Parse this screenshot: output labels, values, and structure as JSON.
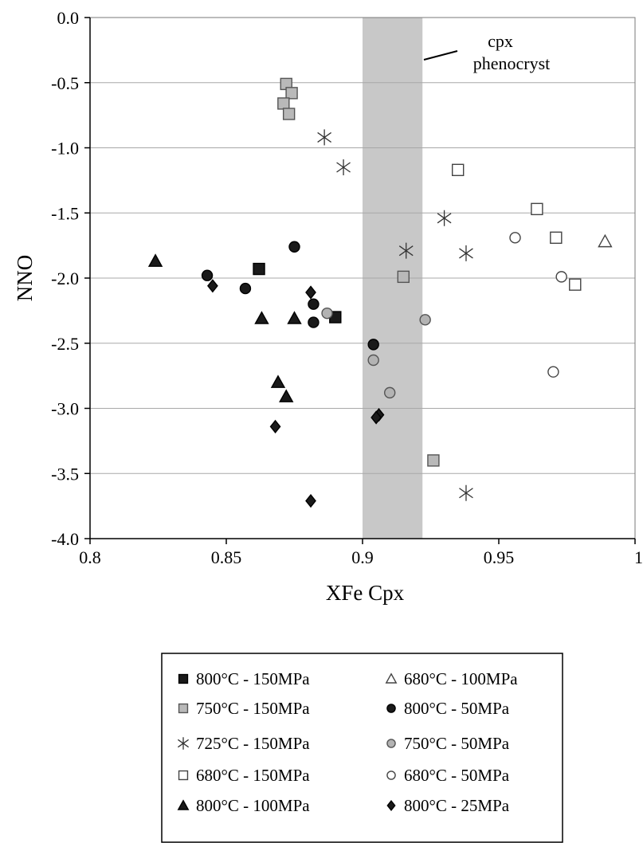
{
  "chart_data": {
    "type": "scatter",
    "xlabel": "XFe Cpx",
    "ylabel": "NNO",
    "xlim": [
      0.8,
      1.0
    ],
    "ylim": [
      -4.0,
      0.0
    ],
    "x_ticks": [
      0.8,
      0.85,
      0.9,
      0.95,
      1.0
    ],
    "x_tick_labels": [
      "0.8",
      "0.85",
      "0.9",
      "0.95",
      "1"
    ],
    "y_ticks": [
      0.0,
      -0.5,
      -1.0,
      -1.5,
      -2.0,
      -2.5,
      -3.0,
      -3.5,
      -4.0
    ],
    "y_tick_labels": [
      "0.0",
      "-0.5",
      "-1.0",
      "-1.5",
      "-2.0",
      "-2.5",
      "-3.0",
      "-3.5",
      "-4.0"
    ],
    "grid": "horizontal",
    "shaded_band": {
      "x": [
        0.9,
        0.922
      ],
      "color": "#c8c8c8"
    },
    "annotation": {
      "lines": [
        "cpx",
        "phenocryst"
      ]
    },
    "legend_position": "bottom",
    "series": [
      {
        "name": "800°C - 150MPa",
        "marker": "square",
        "fill": "#1a1a1a",
        "stroke": "#000000",
        "size": 14,
        "points": [
          [
            0.862,
            -1.93
          ],
          [
            0.89,
            -2.3
          ]
        ]
      },
      {
        "name": "750°C - 150MPa",
        "marker": "square",
        "fill": "#b9b9b9",
        "stroke": "#555555",
        "size": 14,
        "points": [
          [
            0.872,
            -0.51
          ],
          [
            0.874,
            -0.58
          ],
          [
            0.871,
            -0.66
          ],
          [
            0.873,
            -0.74
          ],
          [
            0.915,
            -1.99
          ],
          [
            0.926,
            -3.4
          ]
        ]
      },
      {
        "name": "725°C - 150MPa",
        "marker": "asterisk",
        "fill": "none",
        "stroke": "#333333",
        "size": 20,
        "points": [
          [
            0.886,
            -0.92
          ],
          [
            0.893,
            -1.15
          ],
          [
            0.916,
            -1.79
          ],
          [
            0.93,
            -1.54
          ],
          [
            0.938,
            -1.81
          ],
          [
            0.938,
            -3.65
          ]
        ]
      },
      {
        "name": "680°C - 150MPa",
        "marker": "square",
        "fill": "#ffffff",
        "stroke": "#444444",
        "size": 14,
        "points": [
          [
            0.935,
            -1.17
          ],
          [
            0.964,
            -1.47
          ],
          [
            0.971,
            -1.69
          ],
          [
            0.978,
            -2.05
          ]
        ]
      },
      {
        "name": "800°C - 100MPa",
        "marker": "triangle",
        "fill": "#1a1a1a",
        "stroke": "#000000",
        "size": 16,
        "points": [
          [
            0.824,
            -1.87
          ],
          [
            0.863,
            -2.31
          ],
          [
            0.875,
            -2.31
          ],
          [
            0.869,
            -2.8
          ],
          [
            0.872,
            -2.91
          ]
        ]
      },
      {
        "name": "680°C - 100MPa",
        "marker": "triangle",
        "fill": "#ffffff",
        "stroke": "#444444",
        "size": 16,
        "points": [
          [
            0.989,
            -1.72
          ]
        ]
      },
      {
        "name": "800°C - 50MPa",
        "marker": "circle",
        "fill": "#1a1a1a",
        "stroke": "#000000",
        "size": 13,
        "points": [
          [
            0.875,
            -1.76
          ],
          [
            0.843,
            -1.98
          ],
          [
            0.857,
            -2.08
          ],
          [
            0.882,
            -2.2
          ],
          [
            0.882,
            -2.34
          ],
          [
            0.904,
            -2.51
          ]
        ]
      },
      {
        "name": "750°C - 50MPa",
        "marker": "circle",
        "fill": "#b3b3b3",
        "stroke": "#555555",
        "size": 13,
        "points": [
          [
            0.887,
            -2.27
          ],
          [
            0.923,
            -2.32
          ],
          [
            0.904,
            -2.63
          ],
          [
            0.91,
            -2.88
          ]
        ]
      },
      {
        "name": "680°C - 50MPa",
        "marker": "circle",
        "fill": "#ffffff",
        "stroke": "#444444",
        "size": 13,
        "points": [
          [
            0.956,
            -1.69
          ],
          [
            0.973,
            -1.99
          ],
          [
            0.97,
            -2.72
          ]
        ]
      },
      {
        "name": "800°C - 25MPa",
        "marker": "diamond",
        "fill": "#1a1a1a",
        "stroke": "#000000",
        "size": 15,
        "points": [
          [
            0.845,
            -2.06
          ],
          [
            0.881,
            -2.11
          ],
          [
            0.906,
            -3.05
          ],
          [
            0.905,
            -3.07
          ],
          [
            0.868,
            -3.14
          ],
          [
            0.881,
            -3.71
          ]
        ]
      }
    ],
    "legend_order": [
      [
        "800°C - 150MPa",
        "680°C - 100MPa"
      ],
      [
        "750°C - 150MPa",
        "800°C - 50MPa"
      ],
      [
        "725°C - 150MPa",
        "750°C - 50MPa"
      ],
      [
        "680°C - 150MPa",
        "680°C - 50MPa"
      ],
      [
        "800°C - 100MPa",
        "800°C - 25MPa"
      ]
    ]
  }
}
